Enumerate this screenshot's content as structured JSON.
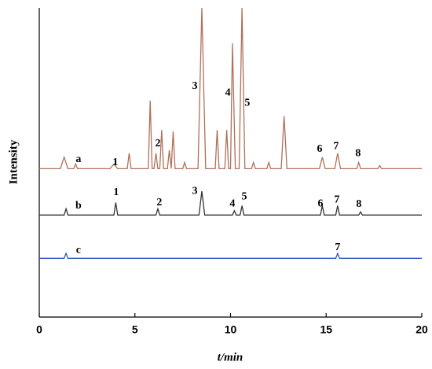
{
  "chart_data": {
    "type": "line",
    "x_label": "t/min",
    "y_label": "Intensity",
    "xlim": [
      0,
      20
    ],
    "xticks": [
      0,
      5,
      10,
      15,
      20
    ],
    "ylim": [
      0,
      100
    ],
    "series": [
      {
        "name": "a",
        "color": "#b0705a",
        "x": [
          0,
          1.1,
          1.3,
          1.5,
          1.8,
          1.9,
          2.0,
          3.7,
          3.9,
          4.1,
          4.6,
          4.7,
          4.8,
          5.7,
          5.8,
          5.9,
          6.0,
          6.1,
          6.2,
          6.3,
          6.4,
          6.5,
          6.7,
          6.8,
          6.9,
          7.0,
          7.1,
          7.5,
          7.6,
          7.7,
          8.3,
          8.5,
          8.7,
          9.2,
          9.3,
          9.4,
          9.7,
          9.8,
          9.9,
          10.0,
          10.1,
          10.25,
          10.45,
          10.6,
          10.75,
          11.1,
          11.2,
          11.3,
          11.9,
          12.0,
          12.1,
          12.65,
          12.8,
          12.95,
          14.65,
          14.8,
          14.95,
          15.45,
          15.6,
          15.75,
          16.6,
          16.7,
          16.8,
          17.7,
          17.8,
          17.9,
          20
        ],
        "values": [
          48,
          48,
          51.7,
          48,
          48,
          49.5,
          48,
          48,
          49.5,
          48,
          48,
          53,
          48,
          48,
          70,
          48,
          48,
          53,
          48,
          48,
          60.5,
          48,
          48,
          54,
          48,
          60,
          48,
          48,
          50,
          48,
          48,
          100,
          48,
          48,
          60.5,
          48,
          48,
          60.5,
          48,
          48,
          88.5,
          48,
          48,
          100,
          48,
          48,
          50,
          48,
          48,
          50,
          48,
          48,
          65,
          48,
          48,
          51.7,
          48,
          48,
          53,
          48,
          48,
          50,
          48,
          48,
          49,
          48,
          48
        ]
      },
      {
        "name": "b",
        "color": "#333333",
        "x": [
          0,
          1.3,
          1.4,
          1.5,
          3.9,
          4.0,
          4.1,
          6.1,
          6.2,
          6.3,
          8.35,
          8.5,
          8.65,
          10.1,
          10.2,
          10.3,
          10.5,
          10.6,
          10.7,
          14.7,
          14.8,
          14.9,
          15.5,
          15.6,
          15.7,
          16.7,
          16.8,
          16.9,
          20
        ],
        "values": [
          33,
          33,
          35,
          33,
          33,
          37,
          33,
          33,
          35,
          33,
          33,
          40.7,
          33,
          33,
          34.4,
          33,
          33,
          36,
          33,
          33,
          36,
          33,
          33,
          36,
          33,
          33,
          34,
          33,
          33
        ]
      },
      {
        "name": "c",
        "color": "#3355bb",
        "x": [
          0,
          1.3,
          1.4,
          1.5,
          15.5,
          15.6,
          15.7,
          20
        ],
        "values": [
          19,
          19,
          20.6,
          19,
          19,
          20.6,
          19,
          19
        ]
      }
    ],
    "annotations": [
      {
        "text": "a",
        "x": 2.05,
        "y": 51
      },
      {
        "text": "1",
        "x": 3.98,
        "y": 49.9
      },
      {
        "text": "2",
        "x": 6.2,
        "y": 56
      },
      {
        "text": "3",
        "x": 8.13,
        "y": 74.6
      },
      {
        "text": "4",
        "x": 9.86,
        "y": 72.5
      },
      {
        "text": "5",
        "x": 10.88,
        "y": 69.2
      },
      {
        "text": "6",
        "x": 14.66,
        "y": 54.2
      },
      {
        "text": "7",
        "x": 15.52,
        "y": 55.2
      },
      {
        "text": "8",
        "x": 16.67,
        "y": 52.9
      },
      {
        "text": "b",
        "x": 2.05,
        "y": 35.9
      },
      {
        "text": "1",
        "x": 4.02,
        "y": 40.2
      },
      {
        "text": "2",
        "x": 6.28,
        "y": 36.9
      },
      {
        "text": "3",
        "x": 8.13,
        "y": 40.7
      },
      {
        "text": "4",
        "x": 10.1,
        "y": 36.6
      },
      {
        "text": "5",
        "x": 10.72,
        "y": 38.9
      },
      {
        "text": "6",
        "x": 14.7,
        "y": 36.6
      },
      {
        "text": "7",
        "x": 15.56,
        "y": 37.9
      },
      {
        "text": "8",
        "x": 16.71,
        "y": 36.4
      },
      {
        "text": "c",
        "x": 2.05,
        "y": 21.6
      },
      {
        "text": "7",
        "x": 15.6,
        "y": 22.4
      }
    ]
  }
}
